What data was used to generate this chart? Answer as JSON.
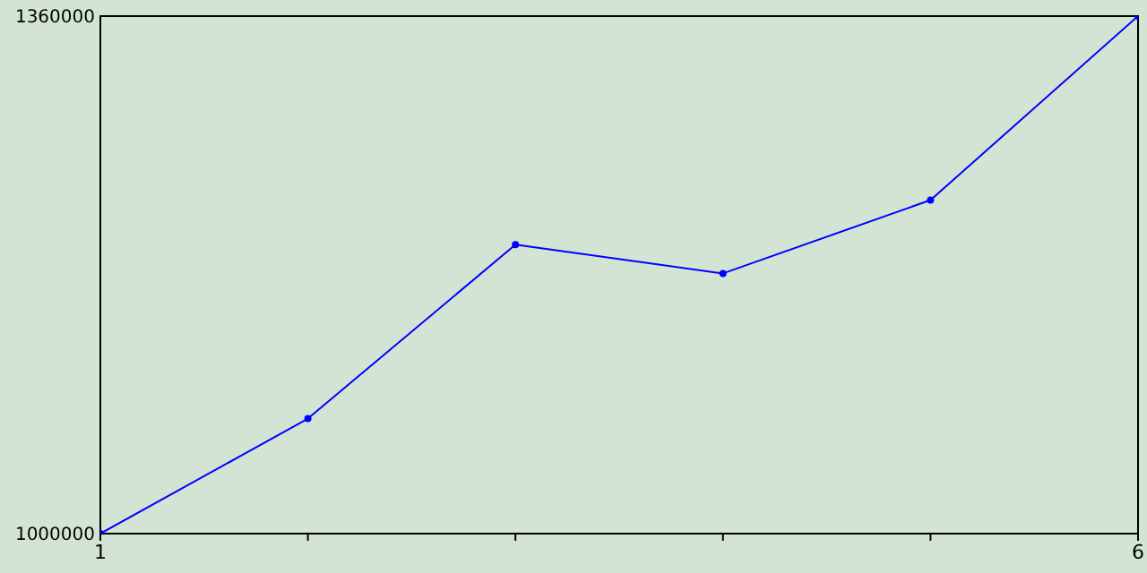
{
  "chart_data": {
    "type": "line",
    "x": [
      1,
      2,
      3,
      4,
      5,
      6
    ],
    "series": [
      {
        "color": "#0000ff",
        "values": [
          1000000,
          1080000,
          1201000,
          1181000,
          1232000,
          1360000
        ]
      }
    ],
    "xlim": [
      1,
      6
    ],
    "xticks": [
      1,
      {
        "value": 2,
        "label": null
      },
      {
        "value": 3,
        "label": null
      },
      {
        "value": 4,
        "label": null
      },
      {
        "value": 5,
        "label": null
      },
      6
    ],
    "ylim": [
      1000000,
      1360000
    ],
    "yticks": [
      1000000,
      1360000
    ],
    "marker": "circle",
    "grid": false
  }
}
